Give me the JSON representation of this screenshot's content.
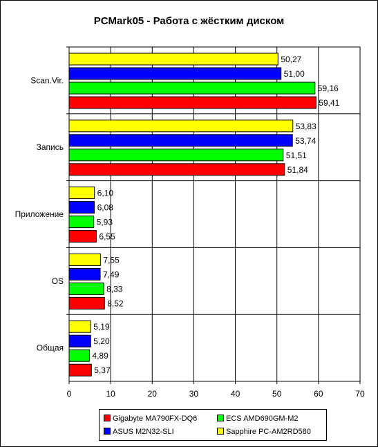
{
  "chart_data": {
    "type": "bar",
    "orientation": "horizontal",
    "title": "PCMark05 - Работа с жёстким диском",
    "categories": [
      "Scan.Vir.",
      "Запись",
      "Приложение",
      "OS",
      "Общая"
    ],
    "series": [
      {
        "name": "Sapphire PC-AM2RD580",
        "color": "#ffff00",
        "values": [
          50.27,
          53.83,
          6.1,
          7.55,
          5.19
        ],
        "labels": [
          "50,27",
          "53,83",
          "6,10",
          "7,55",
          "5,19"
        ]
      },
      {
        "name": "ASUS M2N32-SLI",
        "color": "#0000ff",
        "values": [
          51.0,
          53.74,
          6.08,
          7.49,
          5.2
        ],
        "labels": [
          "51,00",
          "53,74",
          "6,08",
          "7,49",
          "5,20"
        ]
      },
      {
        "name": "ECS AMD690GM-M2",
        "color": "#00ff00",
        "values": [
          59.16,
          51.51,
          5.93,
          8.33,
          4.89
        ],
        "labels": [
          "59,16",
          "51,51",
          "5,93",
          "8,33",
          "4,89"
        ]
      },
      {
        "name": "Gigabyte MA790FX-DQ6",
        "color": "#ff0000",
        "values": [
          59.41,
          51.84,
          6.55,
          8.52,
          5.37
        ],
        "labels": [
          "59,41",
          "51,84",
          "6,55",
          "8,52",
          "5,37"
        ]
      }
    ],
    "xlim": [
      0,
      70
    ],
    "xticks": [
      "0",
      "10",
      "20",
      "30",
      "40",
      "50",
      "60",
      "70"
    ],
    "grid": "vertical",
    "legend_position": "bottom",
    "legend_order": [
      "Gigabyte MA790FX-DQ6",
      "ECS AMD690GM-M2",
      "ASUS M2N32-SLI",
      "Sapphire PC-AM2RD580"
    ]
  }
}
